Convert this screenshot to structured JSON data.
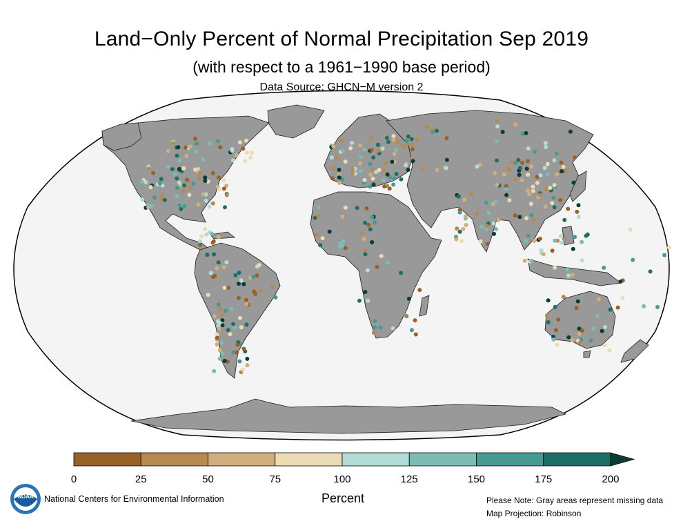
{
  "title": "Land−Only Percent of Normal Precipitation Sep 2019",
  "subtitle": "(with respect to a 1961−1990 base period)",
  "data_source": "Data Source: GHCN−M version 2",
  "organization": "National Centers for Environmental Information",
  "logo_text": "NOAA",
  "notes": {
    "line1": "Please Note: Gray areas represent missing data",
    "line2": "Map Projection: Robinson"
  },
  "colorbar": {
    "title": "Percent",
    "ticks": [
      "0",
      "25",
      "50",
      "75",
      "100",
      "125",
      "150",
      "175",
      "200"
    ],
    "colors": [
      "#9a6126",
      "#b8894f",
      "#d2ae7c",
      "#ecdcb4",
      "#b2ddd7",
      "#7bbdb4",
      "#469a8f",
      "#1d6f65"
    ],
    "overflow_color": "#0b3d35"
  },
  "colors": {
    "land": "#999999",
    "ocean": "#f4f4f4",
    "border": "#000000"
  }
}
